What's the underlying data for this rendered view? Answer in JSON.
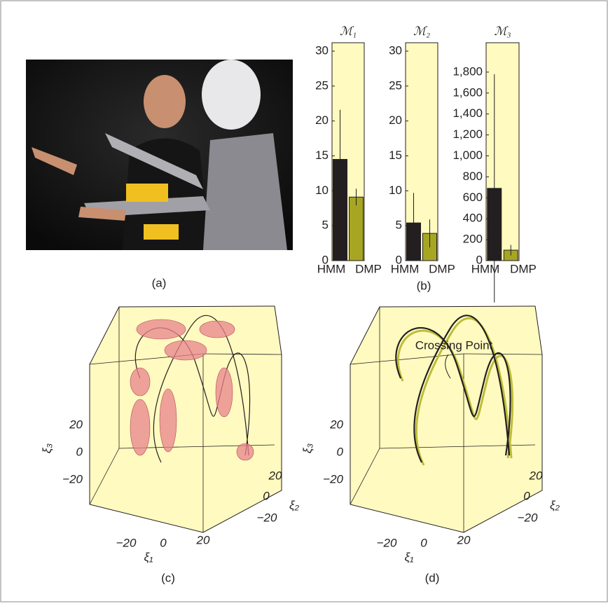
{
  "panels": {
    "a": "(a)",
    "b": "(b)",
    "c": "(c)",
    "d": "(d)"
  },
  "chart_data": [
    {
      "type": "bar",
      "title": "ℳ₁",
      "categories": [
        "HMM",
        "DMP"
      ],
      "values": [
        14.5,
        9.1
      ],
      "errors": [
        7.1,
        1.2
      ],
      "colors": [
        "#231f20",
        "#a6a623"
      ],
      "ylim": [
        0,
        30
      ],
      "yticks": [
        0,
        5,
        10,
        15,
        20,
        25,
        30
      ]
    },
    {
      "type": "bar",
      "title": "ℳ₂",
      "categories": [
        "HMM",
        "DMP"
      ],
      "values": [
        5.4,
        3.9
      ],
      "errors": [
        4.3,
        2.0
      ],
      "colors": [
        "#231f20",
        "#a6a623"
      ],
      "ylim": [
        0,
        30
      ],
      "yticks": [
        0,
        5,
        10,
        15,
        20,
        25,
        30
      ]
    },
    {
      "type": "bar",
      "title": "ℳ₃",
      "categories": [
        "HMM",
        "DMP"
      ],
      "values": [
        690,
        100
      ],
      "errors": [
        1090,
        50
      ],
      "colors": [
        "#231f20",
        "#a6a623"
      ],
      "ylim": [
        0,
        2000
      ],
      "yticks": [
        0,
        200,
        400,
        600,
        800,
        {
          "value": 1000,
          "label": "1,000"
        },
        {
          "value": 1200,
          "label": "1,200"
        },
        {
          "value": 1400,
          "label": "1,400"
        },
        {
          "value": 1600,
          "label": "1,600"
        },
        {
          "value": 1800,
          "label": "1,800"
        }
      ]
    },
    {
      "type": "line3d",
      "xlabel": "ξ₁",
      "ylabel": "ξ₂",
      "zlabel": "ξ₃",
      "xticks": [
        {
          "value": -20,
          "label": "−20"
        },
        0,
        20
      ],
      "yticks": [
        20,
        0,
        {
          "value": -20,
          "label": "−20"
        }
      ],
      "zticks": [
        20,
        0,
        {
          "value": -20,
          "label": "−20"
        }
      ],
      "style": "ellipsoids"
    },
    {
      "type": "line3d",
      "xlabel": "ξ₁",
      "ylabel": "ξ₂",
      "zlabel": "ξ₃",
      "xticks": [
        {
          "value": -20,
          "label": "−20"
        },
        0,
        20
      ],
      "yticks": [
        20,
        0,
        {
          "value": -20,
          "label": "−20"
        }
      ],
      "zticks": [
        20,
        0,
        {
          "value": -20,
          "label": "−20"
        }
      ],
      "style": "trajectories",
      "annotation": "Crossing Point"
    }
  ]
}
